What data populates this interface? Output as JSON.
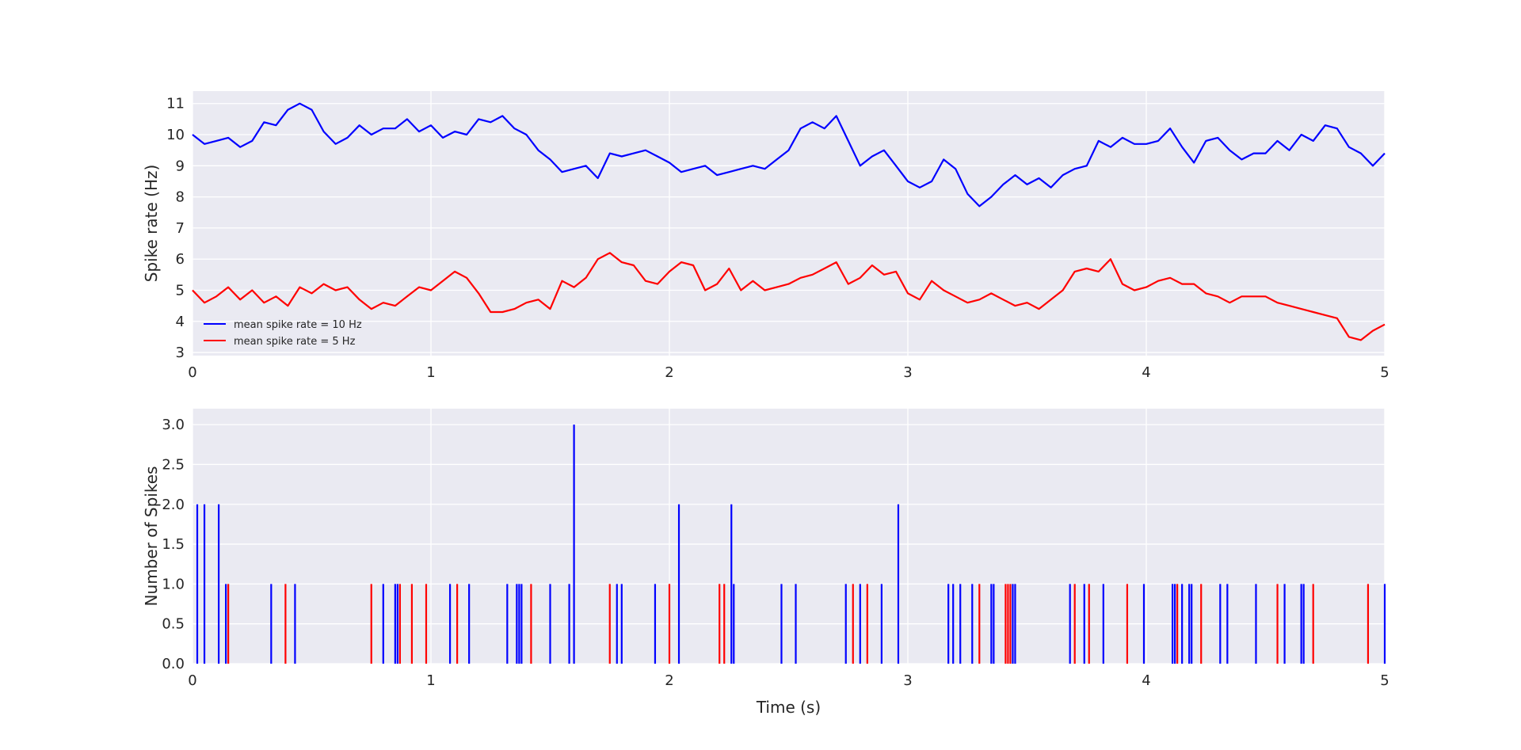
{
  "chart_data": [
    {
      "type": "line",
      "title": "",
      "xlabel": "",
      "ylabel": "Spike rate (Hz)",
      "xlim": [
        0,
        5
      ],
      "ylim": [
        2.9,
        11.4
      ],
      "xticks": [
        0,
        1,
        2,
        3,
        4,
        5
      ],
      "yticks": [
        3,
        4,
        5,
        6,
        7,
        8,
        9,
        10,
        11
      ],
      "grid": true,
      "legend_position": "lower-left",
      "series": [
        {
          "name": "mean spike rate = 10 Hz",
          "color": "#0000ff",
          "x": [
            0,
            0.05,
            0.1,
            0.15,
            0.2,
            0.25,
            0.3,
            0.35,
            0.4,
            0.45,
            0.5,
            0.55,
            0.6,
            0.65,
            0.7,
            0.75,
            0.8,
            0.85,
            0.9,
            0.95,
            1.0,
            1.05,
            1.1,
            1.15,
            1.2,
            1.25,
            1.3,
            1.35,
            1.4,
            1.45,
            1.5,
            1.55,
            1.6,
            1.65,
            1.7,
            1.75,
            1.8,
            1.85,
            1.9,
            1.95,
            2.0,
            2.05,
            2.1,
            2.15,
            2.2,
            2.25,
            2.3,
            2.35,
            2.4,
            2.45,
            2.5,
            2.55,
            2.6,
            2.65,
            2.7,
            2.75,
            2.8,
            2.85,
            2.9,
            2.95,
            3.0,
            3.05,
            3.1,
            3.15,
            3.2,
            3.25,
            3.3,
            3.35,
            3.4,
            3.45,
            3.5,
            3.55,
            3.6,
            3.65,
            3.7,
            3.75,
            3.8,
            3.85,
            3.9,
            3.95,
            4.0,
            4.05,
            4.1,
            4.15,
            4.2,
            4.25,
            4.3,
            4.35,
            4.4,
            4.45,
            4.5,
            4.55,
            4.6,
            4.65,
            4.7,
            4.75,
            4.8,
            4.85,
            4.9,
            4.95,
            5.0
          ],
          "y": [
            10.0,
            9.7,
            9.8,
            9.9,
            9.6,
            9.8,
            10.4,
            10.3,
            10.8,
            11.0,
            10.8,
            10.1,
            9.7,
            9.9,
            10.3,
            10.0,
            10.2,
            10.2,
            10.5,
            10.1,
            10.3,
            9.9,
            10.1,
            10.0,
            10.5,
            10.4,
            10.6,
            10.2,
            10.0,
            9.5,
            9.2,
            8.8,
            8.9,
            9.0,
            8.6,
            9.4,
            9.3,
            9.4,
            9.5,
            9.3,
            9.1,
            8.8,
            8.9,
            9.0,
            8.7,
            8.8,
            8.9,
            9.0,
            8.9,
            9.2,
            9.5,
            10.2,
            10.4,
            10.2,
            10.6,
            9.8,
            9.0,
            9.3,
            9.5,
            9.0,
            8.5,
            8.3,
            8.5,
            9.2,
            8.9,
            8.1,
            7.7,
            8.0,
            8.4,
            8.7,
            8.4,
            8.6,
            8.3,
            8.7,
            8.9,
            9.0,
            9.8,
            9.6,
            9.9,
            9.7,
            9.7,
            9.8,
            10.2,
            9.6,
            9.1,
            9.8,
            9.9,
            9.5,
            9.2,
            9.4,
            9.4,
            9.8,
            9.5,
            10.0,
            9.8,
            10.3,
            10.2,
            9.6,
            9.4,
            9.0,
            9.4
          ]
        },
        {
          "name": "mean spike rate = 5 Hz",
          "color": "#ff0000",
          "x": [
            0,
            0.05,
            0.1,
            0.15,
            0.2,
            0.25,
            0.3,
            0.35,
            0.4,
            0.45,
            0.5,
            0.55,
            0.6,
            0.65,
            0.7,
            0.75,
            0.8,
            0.85,
            0.9,
            0.95,
            1.0,
            1.05,
            1.1,
            1.15,
            1.2,
            1.25,
            1.3,
            1.35,
            1.4,
            1.45,
            1.5,
            1.55,
            1.6,
            1.65,
            1.7,
            1.75,
            1.8,
            1.85,
            1.9,
            1.95,
            2.0,
            2.05,
            2.1,
            2.15,
            2.2,
            2.25,
            2.3,
            2.35,
            2.4,
            2.45,
            2.5,
            2.55,
            2.6,
            2.65,
            2.7,
            2.75,
            2.8,
            2.85,
            2.9,
            2.95,
            3.0,
            3.05,
            3.1,
            3.15,
            3.2,
            3.25,
            3.3,
            3.35,
            3.4,
            3.45,
            3.5,
            3.55,
            3.6,
            3.65,
            3.7,
            3.75,
            3.8,
            3.85,
            3.9,
            3.95,
            4.0,
            4.05,
            4.1,
            4.15,
            4.2,
            4.25,
            4.3,
            4.35,
            4.4,
            4.45,
            4.5,
            4.55,
            4.6,
            4.65,
            4.7,
            4.75,
            4.8,
            4.85,
            4.9,
            4.95,
            5.0
          ],
          "y": [
            5.0,
            4.6,
            4.8,
            5.1,
            4.7,
            5.0,
            4.6,
            4.8,
            4.5,
            5.1,
            4.9,
            5.2,
            5.0,
            5.1,
            4.7,
            4.4,
            4.6,
            4.5,
            4.8,
            5.1,
            5.0,
            5.3,
            5.6,
            5.4,
            4.9,
            4.3,
            4.3,
            4.4,
            4.6,
            4.7,
            4.4,
            5.3,
            5.1,
            5.4,
            6.0,
            6.2,
            5.9,
            5.8,
            5.3,
            5.2,
            5.6,
            5.9,
            5.8,
            5.0,
            5.2,
            5.7,
            5.0,
            5.3,
            5.0,
            5.1,
            5.2,
            5.4,
            5.5,
            5.7,
            5.9,
            5.2,
            5.4,
            5.8,
            5.5,
            5.6,
            4.9,
            4.7,
            5.3,
            5.0,
            4.8,
            4.6,
            4.7,
            4.9,
            4.7,
            4.5,
            4.6,
            4.4,
            4.7,
            5.0,
            5.6,
            5.7,
            5.6,
            6.0,
            5.2,
            5.0,
            5.1,
            5.3,
            5.4,
            5.2,
            5.2,
            4.9,
            4.8,
            4.6,
            4.8,
            4.8,
            4.8,
            4.6,
            4.5,
            4.4,
            4.3,
            4.2,
            4.1,
            3.5,
            3.4,
            3.7,
            3.9
          ]
        }
      ]
    },
    {
      "type": "bar",
      "title": "",
      "xlabel": "Time (s)",
      "ylabel": "Number of Spikes",
      "xlim": [
        0,
        5
      ],
      "ylim": [
        0,
        3.2
      ],
      "xticks": [
        0,
        1,
        2,
        3,
        4,
        5
      ],
      "yticks": [
        0.0,
        0.5,
        1.0,
        1.5,
        2.0,
        2.5,
        3.0
      ],
      "grid": true,
      "series": [
        {
          "color": "#0000ff",
          "x": [
            0.02,
            0.05,
            0.11,
            0.14,
            0.33,
            0.43,
            0.8,
            0.85,
            0.86,
            1.08,
            1.16,
            1.32,
            1.36,
            1.37,
            1.38,
            1.5,
            1.58,
            1.6,
            1.78,
            1.8,
            1.94,
            2.04,
            2.26,
            2.27,
            2.47,
            2.53,
            2.74,
            2.8,
            2.89,
            2.96,
            3.17,
            3.19,
            3.22,
            3.27,
            3.35,
            3.36,
            3.44,
            3.45,
            3.68,
            3.74,
            3.82,
            3.99,
            4.11,
            4.12,
            4.15,
            4.18,
            4.19,
            4.31,
            4.34,
            4.46,
            4.58,
            4.65,
            4.66,
            5.0
          ],
          "values": [
            2,
            2,
            2,
            1,
            1,
            1,
            1,
            1,
            1,
            1,
            1,
            1,
            1,
            1,
            1,
            1,
            1,
            3,
            1,
            1,
            1,
            2,
            2,
            1,
            1,
            1,
            1,
            1,
            1,
            2,
            1,
            1,
            1,
            1,
            1,
            1,
            1,
            1,
            1,
            1,
            1,
            1,
            1,
            1,
            1,
            1,
            1,
            1,
            1,
            1,
            1,
            1,
            1,
            1
          ]
        },
        {
          "color": "#ff0000",
          "x": [
            0.15,
            0.39,
            0.75,
            0.87,
            0.92,
            0.98,
            1.11,
            1.42,
            1.75,
            2.0,
            2.21,
            2.23,
            2.77,
            2.83,
            3.3,
            3.41,
            3.42,
            3.43,
            3.7,
            3.76,
            3.92,
            4.13,
            4.23,
            4.55,
            4.7,
            4.93
          ],
          "values": [
            1,
            1,
            1,
            1,
            1,
            1,
            1,
            1,
            1,
            1,
            1,
            1,
            1,
            1,
            1,
            1,
            1,
            1,
            1,
            1,
            1,
            1,
            1,
            1,
            1,
            1
          ]
        }
      ]
    }
  ]
}
